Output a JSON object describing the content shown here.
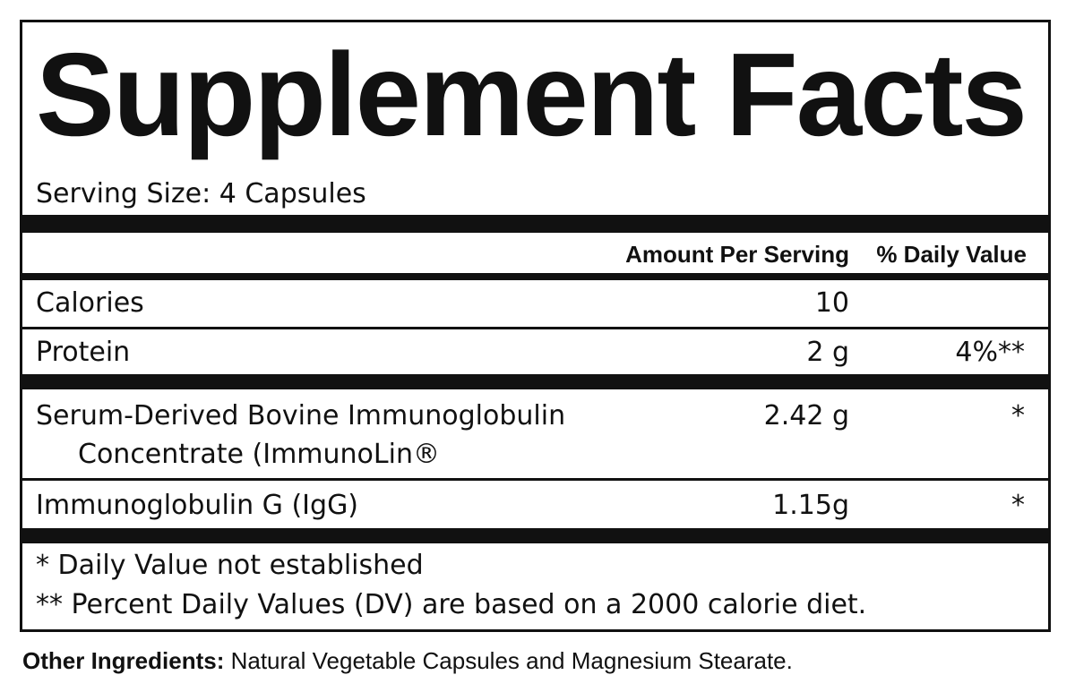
{
  "label": {
    "title": "Supplement Facts",
    "serving_size": "Serving Size: 4 Capsules",
    "header": {
      "amount": "Amount Per Serving",
      "daily_value": "% Daily Value"
    },
    "rows": [
      {
        "name": [
          "Calories"
        ],
        "amount": "10",
        "daily_value": ""
      },
      {
        "name": [
          "Protein"
        ],
        "amount": "2 g",
        "daily_value": "4%**"
      },
      {
        "name": [
          "Serum-Derived Bovine Immunoglobulin",
          "Concentrate (ImmunoLin®"
        ],
        "amount": "2.42 g",
        "daily_value": "*"
      },
      {
        "name": [
          "Immunoglobulin G (IgG)"
        ],
        "amount": "1.15g",
        "daily_value": "*"
      }
    ],
    "footnotes": [
      "* Daily Value not established",
      "** Percent Daily Values (DV) are based on a 2000 calorie diet."
    ]
  },
  "other_ingredients": {
    "label": "Other Ingredients:",
    "text": "Natural Vegetable Capsules and Magnesium Stearate."
  }
}
